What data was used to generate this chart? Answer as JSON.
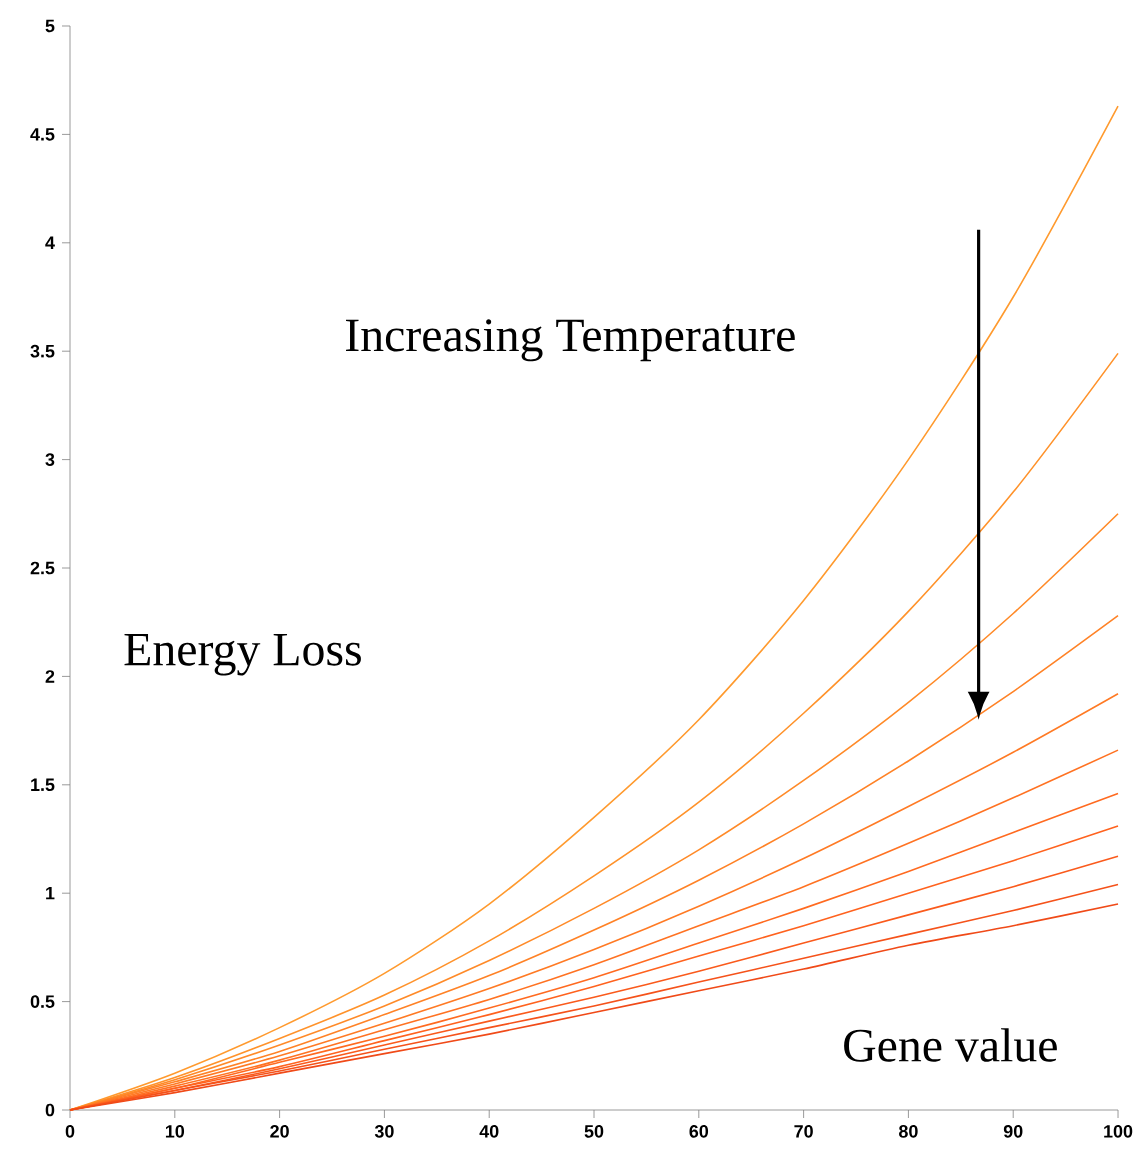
{
  "chart_data": {
    "type": "line",
    "xlabel": "Gene value",
    "ylabel": "Energy Loss",
    "annotations": [
      "Increasing Temperature"
    ],
    "x": [
      0,
      10,
      20,
      30,
      40,
      50,
      60,
      70,
      80,
      90,
      100
    ],
    "series": [
      {
        "color": "#ff9a2e",
        "values": [
          0,
          0.17,
          0.38,
          0.63,
          0.95,
          1.35,
          1.8,
          2.35,
          3.0,
          3.75,
          4.63
        ]
      },
      {
        "color": "#ff922a",
        "values": [
          0,
          0.15,
          0.33,
          0.53,
          0.78,
          1.08,
          1.42,
          1.83,
          2.3,
          2.85,
          3.49
        ]
      },
      {
        "color": "#ff8a28",
        "values": [
          0,
          0.14,
          0.3,
          0.48,
          0.69,
          0.93,
          1.2,
          1.52,
          1.88,
          2.29,
          2.75
        ]
      },
      {
        "color": "#ff8226",
        "values": [
          0,
          0.13,
          0.27,
          0.44,
          0.62,
          0.83,
          1.06,
          1.32,
          1.61,
          1.93,
          2.28
        ]
      },
      {
        "color": "#ff7a24",
        "values": [
          0,
          0.12,
          0.25,
          0.4,
          0.56,
          0.74,
          0.94,
          1.16,
          1.4,
          1.65,
          1.92
        ]
      },
      {
        "color": "#ff7222",
        "values": [
          0,
          0.11,
          0.23,
          0.37,
          0.51,
          0.67,
          0.85,
          1.03,
          1.23,
          1.44,
          1.66
        ]
      },
      {
        "color": "#ff6a20",
        "values": [
          0,
          0.1,
          0.22,
          0.34,
          0.47,
          0.61,
          0.77,
          0.93,
          1.1,
          1.28,
          1.46
        ]
      },
      {
        "color": "#ff621e",
        "values": [
          0,
          0.1,
          0.2,
          0.32,
          0.44,
          0.57,
          0.71,
          0.85,
          1.0,
          1.15,
          1.31
        ]
      },
      {
        "color": "#fa5a1c",
        "values": [
          0,
          0.09,
          0.19,
          0.3,
          0.41,
          0.52,
          0.64,
          0.77,
          0.9,
          1.03,
          1.17
        ]
      },
      {
        "color": "#f5521a",
        "values": [
          0,
          0.09,
          0.18,
          0.28,
          0.38,
          0.48,
          0.59,
          0.7,
          0.81,
          0.92,
          1.04
        ]
      },
      {
        "color": "#f04a18",
        "values": [
          0,
          0.08,
          0.17,
          0.26,
          0.35,
          0.45,
          0.55,
          0.65,
          0.76,
          0.85,
          0.95
        ]
      }
    ],
    "xlim": [
      0,
      100
    ],
    "xticks": [
      0,
      10,
      20,
      30,
      40,
      50,
      60,
      70,
      80,
      90,
      100
    ],
    "ylim": [
      0,
      5
    ],
    "yticks": [
      0,
      0.5,
      1,
      1.5,
      2,
      2.5,
      3,
      3.5,
      4,
      4.5,
      5
    ],
    "grid": false,
    "marker": "none"
  }
}
